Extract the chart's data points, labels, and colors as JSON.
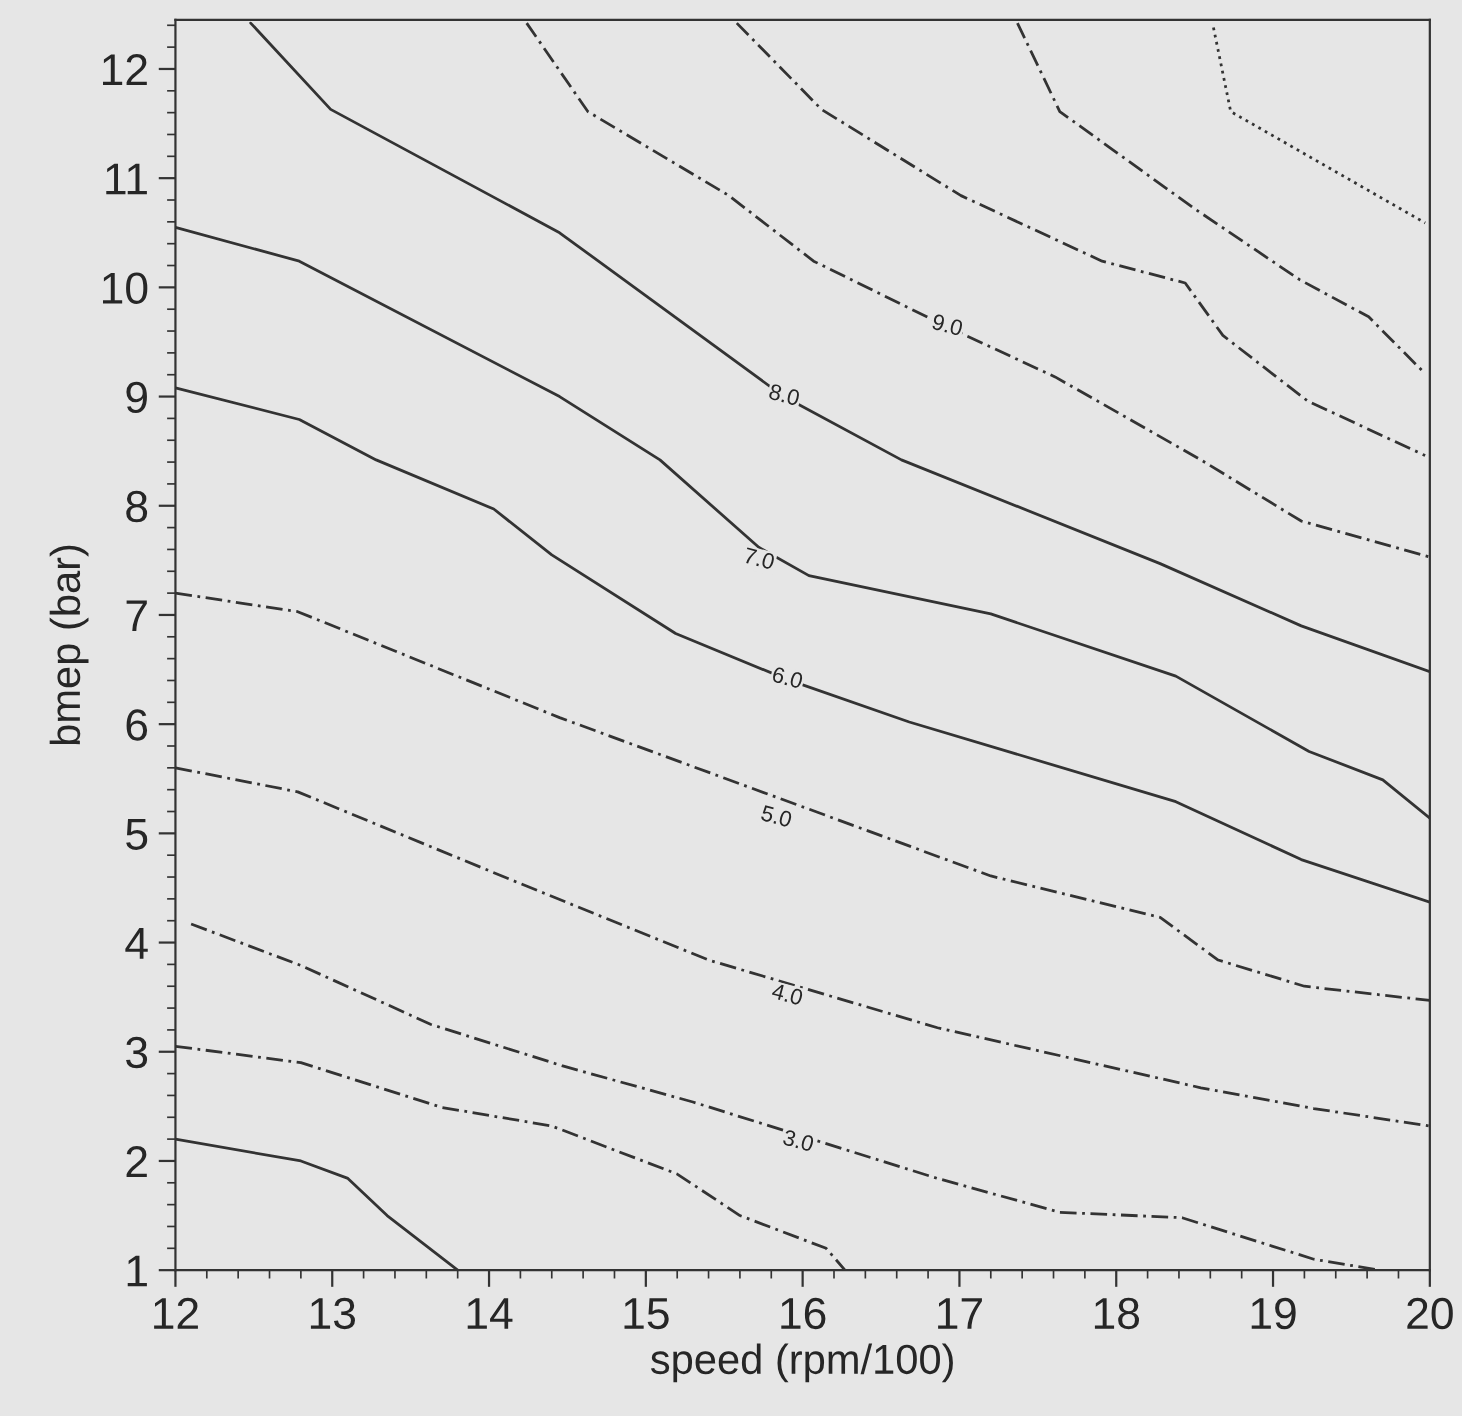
{
  "chart_data": {
    "type": "line",
    "xlabel": "speed (rpm/100)",
    "ylabel": "bmep (bar)",
    "xlim": [
      12,
      20
    ],
    "ylim": [
      1,
      12.45
    ],
    "xticks": [
      12,
      13,
      14,
      15,
      16,
      17,
      18,
      19,
      20
    ],
    "yticks": [
      1,
      2,
      3,
      4,
      5,
      6,
      7,
      8,
      9,
      10,
      11,
      12
    ],
    "grid": false,
    "marker": "none",
    "series": [
      {
        "color": "#333333",
        "line_style": "solid",
        "x": [
          12,
          12.8,
          13.1,
          13.35,
          13.8
        ],
        "values": [
          2.2,
          2.0,
          1.84,
          1.5,
          1.0
        ]
      },
      {
        "color": "#333333",
        "line_style": "dashed",
        "x": [
          12,
          12.8,
          13.7,
          14.4,
          15.2,
          15.6,
          16.15,
          16.27
        ],
        "values": [
          3.05,
          2.9,
          2.49,
          2.32,
          1.88,
          1.5,
          1.2,
          1.0
        ]
      },
      {
        "color": "#333333",
        "line_style": "dashed",
        "x": [
          12.1,
          12.8,
          13.63,
          14.47,
          15.3,
          16.86,
          17.64,
          18.42,
          19.26,
          19.68
        ],
        "values": [
          4.17,
          3.79,
          3.25,
          2.87,
          2.54,
          1.84,
          1.53,
          1.48,
          1.1,
          1.0
        ]
      },
      {
        "color": "#333333",
        "line_style": "dashed",
        "x": [
          12,
          12.78,
          14.2,
          15.4,
          16.86,
          18.54,
          19.26,
          20
        ],
        "values": [
          5.6,
          5.38,
          4.54,
          3.84,
          3.22,
          2.67,
          2.48,
          2.32
        ]
      },
      {
        "color": "#333333",
        "line_style": "dashed",
        "x": [
          12,
          12.78,
          14.45,
          17.2,
          18.28,
          18.65,
          19.2,
          20
        ],
        "values": [
          7.2,
          7.03,
          6.06,
          4.61,
          4.23,
          3.84,
          3.6,
          3.47
        ]
      },
      {
        "color": "#333333",
        "line_style": "solid",
        "x": [
          12,
          12.79,
          13.28,
          14.03,
          14.4,
          15.19,
          15.9,
          16.68,
          18.38,
          19.18,
          20
        ],
        "values": [
          9.08,
          8.79,
          8.42,
          7.97,
          7.55,
          6.83,
          6.41,
          6.02,
          5.29,
          4.76,
          4.37
        ]
      },
      {
        "color": "#333333",
        "line_style": "solid",
        "x": [
          12,
          12.79,
          14.45,
          15.09,
          15.72,
          16.04,
          17.2,
          18.38,
          19.23,
          19.7,
          20
        ],
        "values": [
          10.55,
          10.24,
          9.0,
          8.42,
          7.62,
          7.36,
          7.01,
          6.44,
          5.75,
          5.49,
          5.14
        ]
      },
      {
        "color": "#333333",
        "line_style": "solid",
        "x": [
          12.48,
          12.99,
          14.45,
          15.88,
          16.63,
          18.28,
          19.18,
          20
        ],
        "values": [
          12.42,
          11.63,
          10.5,
          9.0,
          8.42,
          7.47,
          6.9,
          6.48
        ]
      },
      {
        "color": "#333333",
        "line_style": "dashed",
        "x": [
          14.24,
          14.63,
          15.53,
          16.07,
          16.92,
          17.61,
          18.54,
          19.18,
          20
        ],
        "values": [
          12.42,
          11.61,
          10.84,
          10.24,
          9.64,
          9.18,
          8.42,
          7.86,
          7.53
        ]
      },
      {
        "color": "#333333",
        "line_style": "dashed",
        "x": [
          15.58,
          16.12,
          17.01,
          17.91,
          18.44,
          18.68,
          19.22,
          19.97
        ],
        "values": [
          12.42,
          11.63,
          10.84,
          10.24,
          10.04,
          9.56,
          8.96,
          8.46
        ]
      },
      {
        "color": "#333333",
        "line_style": "dashed",
        "x": [
          17.37,
          17.64,
          18.5,
          19.17,
          19.61,
          19.97
        ],
        "values": [
          12.42,
          11.61,
          10.72,
          10.07,
          9.73,
          9.21
        ]
      },
      {
        "color": "#333333",
        "line_style": "dotted",
        "x": [
          18.62,
          18.73,
          19.35,
          19.97
        ],
        "values": [
          12.38,
          11.61,
          11.1,
          10.59
        ]
      }
    ],
    "annotations": [
      {
        "text": "3.0",
        "x": 15.97,
        "y": 2.17
      },
      {
        "text": "4.0",
        "x": 15.9,
        "y": 3.51
      },
      {
        "text": "5.0",
        "x": 15.83,
        "y": 5.14
      },
      {
        "text": "6.0",
        "x": 15.9,
        "y": 6.41
      },
      {
        "text": "7.0",
        "x": 15.72,
        "y": 7.5
      },
      {
        "text": "8.0",
        "x": 15.88,
        "y": 9.0
      },
      {
        "text": "9.0",
        "x": 16.92,
        "y": 9.64
      }
    ]
  }
}
